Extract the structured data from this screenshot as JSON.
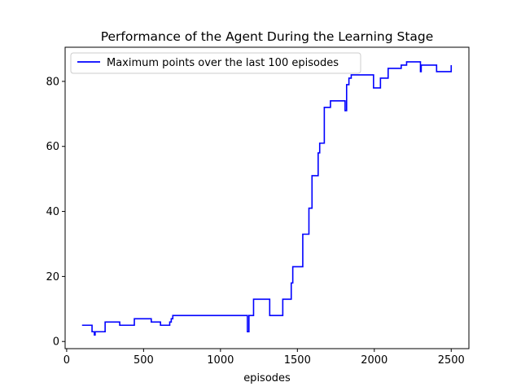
{
  "chart_data": {
    "type": "line",
    "title": "Performance of the Agent During the Learning Stage",
    "xlabel": "episodes",
    "ylabel": "",
    "xlim": [
      -10,
      2615
    ],
    "ylim": [
      -2.2,
      90.5
    ],
    "xticks": [
      0,
      500,
      1000,
      1500,
      2000,
      2500
    ],
    "yticks": [
      0,
      20,
      40,
      60,
      80
    ],
    "grid": false,
    "legend_position": "upper left",
    "color": "#0000ff",
    "series": [
      {
        "name": "Maximum points over the last 100 episodes",
        "step": true,
        "x": [
          100,
          165,
          180,
          185,
          250,
          345,
          440,
          550,
          610,
          670,
          680,
          690,
          700,
          1175,
          1185,
          1215,
          1320,
          1405,
          1460,
          1470,
          1495,
          1535,
          1575,
          1595,
          1635,
          1645,
          1675,
          1715,
          1810,
          1820,
          1835,
          1850,
          1860,
          1880,
          1995,
          2040,
          2090,
          2175,
          2210,
          2300,
          2305,
          2405,
          2500
        ],
        "y": [
          5,
          3,
          2,
          3,
          6,
          5,
          7,
          6,
          5,
          6,
          7,
          8,
          8,
          3,
          8,
          13,
          8,
          13,
          18,
          23,
          23,
          33,
          41,
          51,
          58,
          61,
          72,
          74,
          71,
          79,
          81,
          82,
          82,
          82,
          78,
          81,
          84,
          85,
          86,
          83,
          85,
          83,
          85
        ]
      }
    ]
  }
}
